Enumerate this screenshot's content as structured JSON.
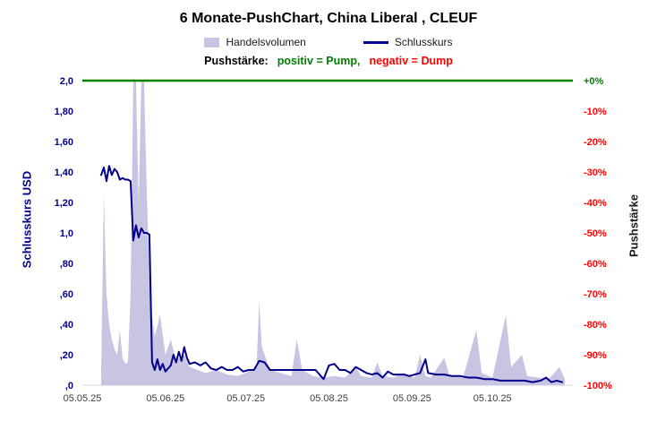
{
  "title": "6 Monate-PushChart,  China Liberal , CLEUF",
  "legend": {
    "volume_label": "Handelsvolumen",
    "price_label": "Schlusskurs"
  },
  "push_legend": {
    "prefix": "Pushstärke:",
    "positive": "positiv = Pump,",
    "negative": "negativ = Dump",
    "positive_color": "#008000",
    "negative_color": "#ff0000"
  },
  "chart_data": {
    "type": "line",
    "title": "6 Monate-PushChart,  China Liberal , CLEUF",
    "x_unit": "days since 05.05.25",
    "x_axis": {
      "labels": [
        "05.05.25",
        "05.06.25",
        "05.07.25",
        "05.08.25",
        "05.09.25",
        "05.10.25"
      ],
      "day_offsets": [
        0,
        31,
        61,
        92,
        123,
        153
      ],
      "range_days": [
        0,
        183
      ],
      "color": "#404040"
    },
    "left_axis": {
      "label": "Schlusskurs USD",
      "color": "#00008b",
      "ticks": [
        "2,0",
        "1,80",
        "1,60",
        "1,40",
        "1,20",
        "1,0",
        ",80",
        ",60",
        ",40",
        ",20",
        ",0"
      ],
      "values": [
        2.0,
        1.8,
        1.6,
        1.4,
        1.2,
        1.0,
        0.8,
        0.6,
        0.4,
        0.2,
        0.0
      ],
      "range": [
        0,
        2
      ]
    },
    "right_axis": {
      "label": "Pushstärke",
      "ticks": [
        {
          "label": "+0%",
          "color": "#008000"
        },
        {
          "label": "-10%",
          "color": "#ff0000"
        },
        {
          "label": "-20%",
          "color": "#ff0000"
        },
        {
          "label": "-30%",
          "color": "#ff0000"
        },
        {
          "label": "-40%",
          "color": "#ff0000"
        },
        {
          "label": "-50%",
          "color": "#ff0000"
        },
        {
          "label": "-60%",
          "color": "#ff0000"
        },
        {
          "label": "-70%",
          "color": "#ff0000"
        },
        {
          "label": "-80%",
          "color": "#ff0000"
        },
        {
          "label": "-90%",
          "color": "#ff0000"
        },
        {
          "label": "-100%",
          "color": "#ff0000"
        }
      ],
      "values": [
        0,
        -10,
        -20,
        -30,
        -40,
        -50,
        -60,
        -70,
        -80,
        -90,
        -100
      ]
    },
    "reference_line": {
      "value": 2.0,
      "right_axis_value": "+0%",
      "color": "#008000"
    },
    "grid": false,
    "legend_position": "top",
    "series": [
      {
        "name": "Handelsvolumen",
        "type": "area",
        "color": "#c8c5e2",
        "points": [
          [
            7,
            0.08
          ],
          [
            8,
            1.26
          ],
          [
            9,
            0.6
          ],
          [
            10,
            0.4
          ],
          [
            11,
            0.3
          ],
          [
            12,
            0.24
          ],
          [
            13,
            0.2
          ],
          [
            14,
            0.36
          ],
          [
            15,
            0.18
          ],
          [
            16,
            0.14
          ],
          [
            17,
            0.15
          ],
          [
            18,
            0.6
          ],
          [
            19,
            2.0
          ],
          [
            20,
            2.0
          ],
          [
            21,
            1.2
          ],
          [
            22,
            2.0
          ],
          [
            23,
            2.0
          ],
          [
            24,
            1.3
          ],
          [
            25,
            0.7
          ],
          [
            26,
            0.45
          ],
          [
            27,
            0.32
          ],
          [
            29,
            0.46
          ],
          [
            31,
            0.2
          ],
          [
            33,
            0.3
          ],
          [
            35,
            0.16
          ],
          [
            38,
            0.2
          ],
          [
            40,
            0.12
          ],
          [
            43,
            0.1
          ],
          [
            46,
            0.08
          ],
          [
            50,
            0.1
          ],
          [
            54,
            0.07
          ],
          [
            58,
            0.06
          ],
          [
            62,
            0.09
          ],
          [
            65,
            0.12
          ],
          [
            66,
            0.55
          ],
          [
            67,
            0.25
          ],
          [
            70,
            0.1
          ],
          [
            74,
            0.08
          ],
          [
            78,
            0.06
          ],
          [
            80,
            0.3
          ],
          [
            82,
            0.1
          ],
          [
            86,
            0.06
          ],
          [
            90,
            0.05
          ],
          [
            94,
            0.06
          ],
          [
            98,
            0.05
          ],
          [
            102,
            0.12
          ],
          [
            104,
            0.06
          ],
          [
            108,
            0.05
          ],
          [
            110,
            0.15
          ],
          [
            112,
            0.06
          ],
          [
            116,
            0.05
          ],
          [
            120,
            0.08
          ],
          [
            124,
            0.05
          ],
          [
            126,
            0.2
          ],
          [
            128,
            0.06
          ],
          [
            130,
            0.05
          ],
          [
            135,
            0.18
          ],
          [
            137,
            0.06
          ],
          [
            142,
            0.05
          ],
          [
            147,
            0.36
          ],
          [
            149,
            0.08
          ],
          [
            153,
            0.05
          ],
          [
            158,
            0.46
          ],
          [
            160,
            0.12
          ],
          [
            164,
            0.2
          ],
          [
            166,
            0.06
          ],
          [
            170,
            0.05
          ],
          [
            174,
            0.04
          ],
          [
            178,
            0.12
          ],
          [
            180,
            0.04
          ]
        ]
      },
      {
        "name": "Schlusskurs",
        "type": "line",
        "color": "#00008b",
        "points": [
          [
            7,
            1.38
          ],
          [
            8,
            1.43
          ],
          [
            9,
            1.34
          ],
          [
            10,
            1.44
          ],
          [
            11,
            1.38
          ],
          [
            12,
            1.42
          ],
          [
            13,
            1.4
          ],
          [
            14,
            1.35
          ],
          [
            15,
            1.36
          ],
          [
            16,
            1.35
          ],
          [
            17,
            1.35
          ],
          [
            18,
            1.34
          ],
          [
            19,
            0.95
          ],
          [
            20,
            1.05
          ],
          [
            21,
            0.97
          ],
          [
            22,
            1.03
          ],
          [
            23,
            1.0
          ],
          [
            24,
            1.0
          ],
          [
            25,
            0.99
          ],
          [
            26,
            0.15
          ],
          [
            27,
            0.1
          ],
          [
            28,
            0.17
          ],
          [
            29,
            0.1
          ],
          [
            30,
            0.14
          ],
          [
            31,
            0.09
          ],
          [
            33,
            0.13
          ],
          [
            34,
            0.2
          ],
          [
            35,
            0.15
          ],
          [
            36,
            0.22
          ],
          [
            37,
            0.16
          ],
          [
            38,
            0.25
          ],
          [
            39,
            0.18
          ],
          [
            40,
            0.14
          ],
          [
            42,
            0.15
          ],
          [
            44,
            0.13
          ],
          [
            46,
            0.15
          ],
          [
            48,
            0.11
          ],
          [
            50,
            0.1
          ],
          [
            52,
            0.12
          ],
          [
            54,
            0.1
          ],
          [
            56,
            0.1
          ],
          [
            58,
            0.12
          ],
          [
            60,
            0.09
          ],
          [
            62,
            0.1
          ],
          [
            64,
            0.1
          ],
          [
            66,
            0.16
          ],
          [
            68,
            0.15
          ],
          [
            70,
            0.1
          ],
          [
            72,
            0.1
          ],
          [
            75,
            0.1
          ],
          [
            78,
            0.1
          ],
          [
            81,
            0.1
          ],
          [
            84,
            0.1
          ],
          [
            87,
            0.1
          ],
          [
            90,
            0.04
          ],
          [
            92,
            0.13
          ],
          [
            94,
            0.14
          ],
          [
            96,
            0.1
          ],
          [
            98,
            0.1
          ],
          [
            100,
            0.08
          ],
          [
            102,
            0.12
          ],
          [
            104,
            0.1
          ],
          [
            106,
            0.08
          ],
          [
            108,
            0.07
          ],
          [
            110,
            0.08
          ],
          [
            112,
            0.05
          ],
          [
            114,
            0.09
          ],
          [
            116,
            0.07
          ],
          [
            118,
            0.07
          ],
          [
            120,
            0.07
          ],
          [
            122,
            0.06
          ],
          [
            124,
            0.07
          ],
          [
            126,
            0.08
          ],
          [
            128,
            0.17
          ],
          [
            129,
            0.08
          ],
          [
            132,
            0.07
          ],
          [
            135,
            0.07
          ],
          [
            138,
            0.06
          ],
          [
            141,
            0.06
          ],
          [
            144,
            0.05
          ],
          [
            147,
            0.05
          ],
          [
            150,
            0.04
          ],
          [
            153,
            0.04
          ],
          [
            156,
            0.03
          ],
          [
            159,
            0.03
          ],
          [
            162,
            0.03
          ],
          [
            165,
            0.03
          ],
          [
            168,
            0.02
          ],
          [
            171,
            0.03
          ],
          [
            173,
            0.05
          ],
          [
            175,
            0.02
          ],
          [
            177,
            0.03
          ],
          [
            179,
            0.02
          ]
        ]
      }
    ]
  }
}
